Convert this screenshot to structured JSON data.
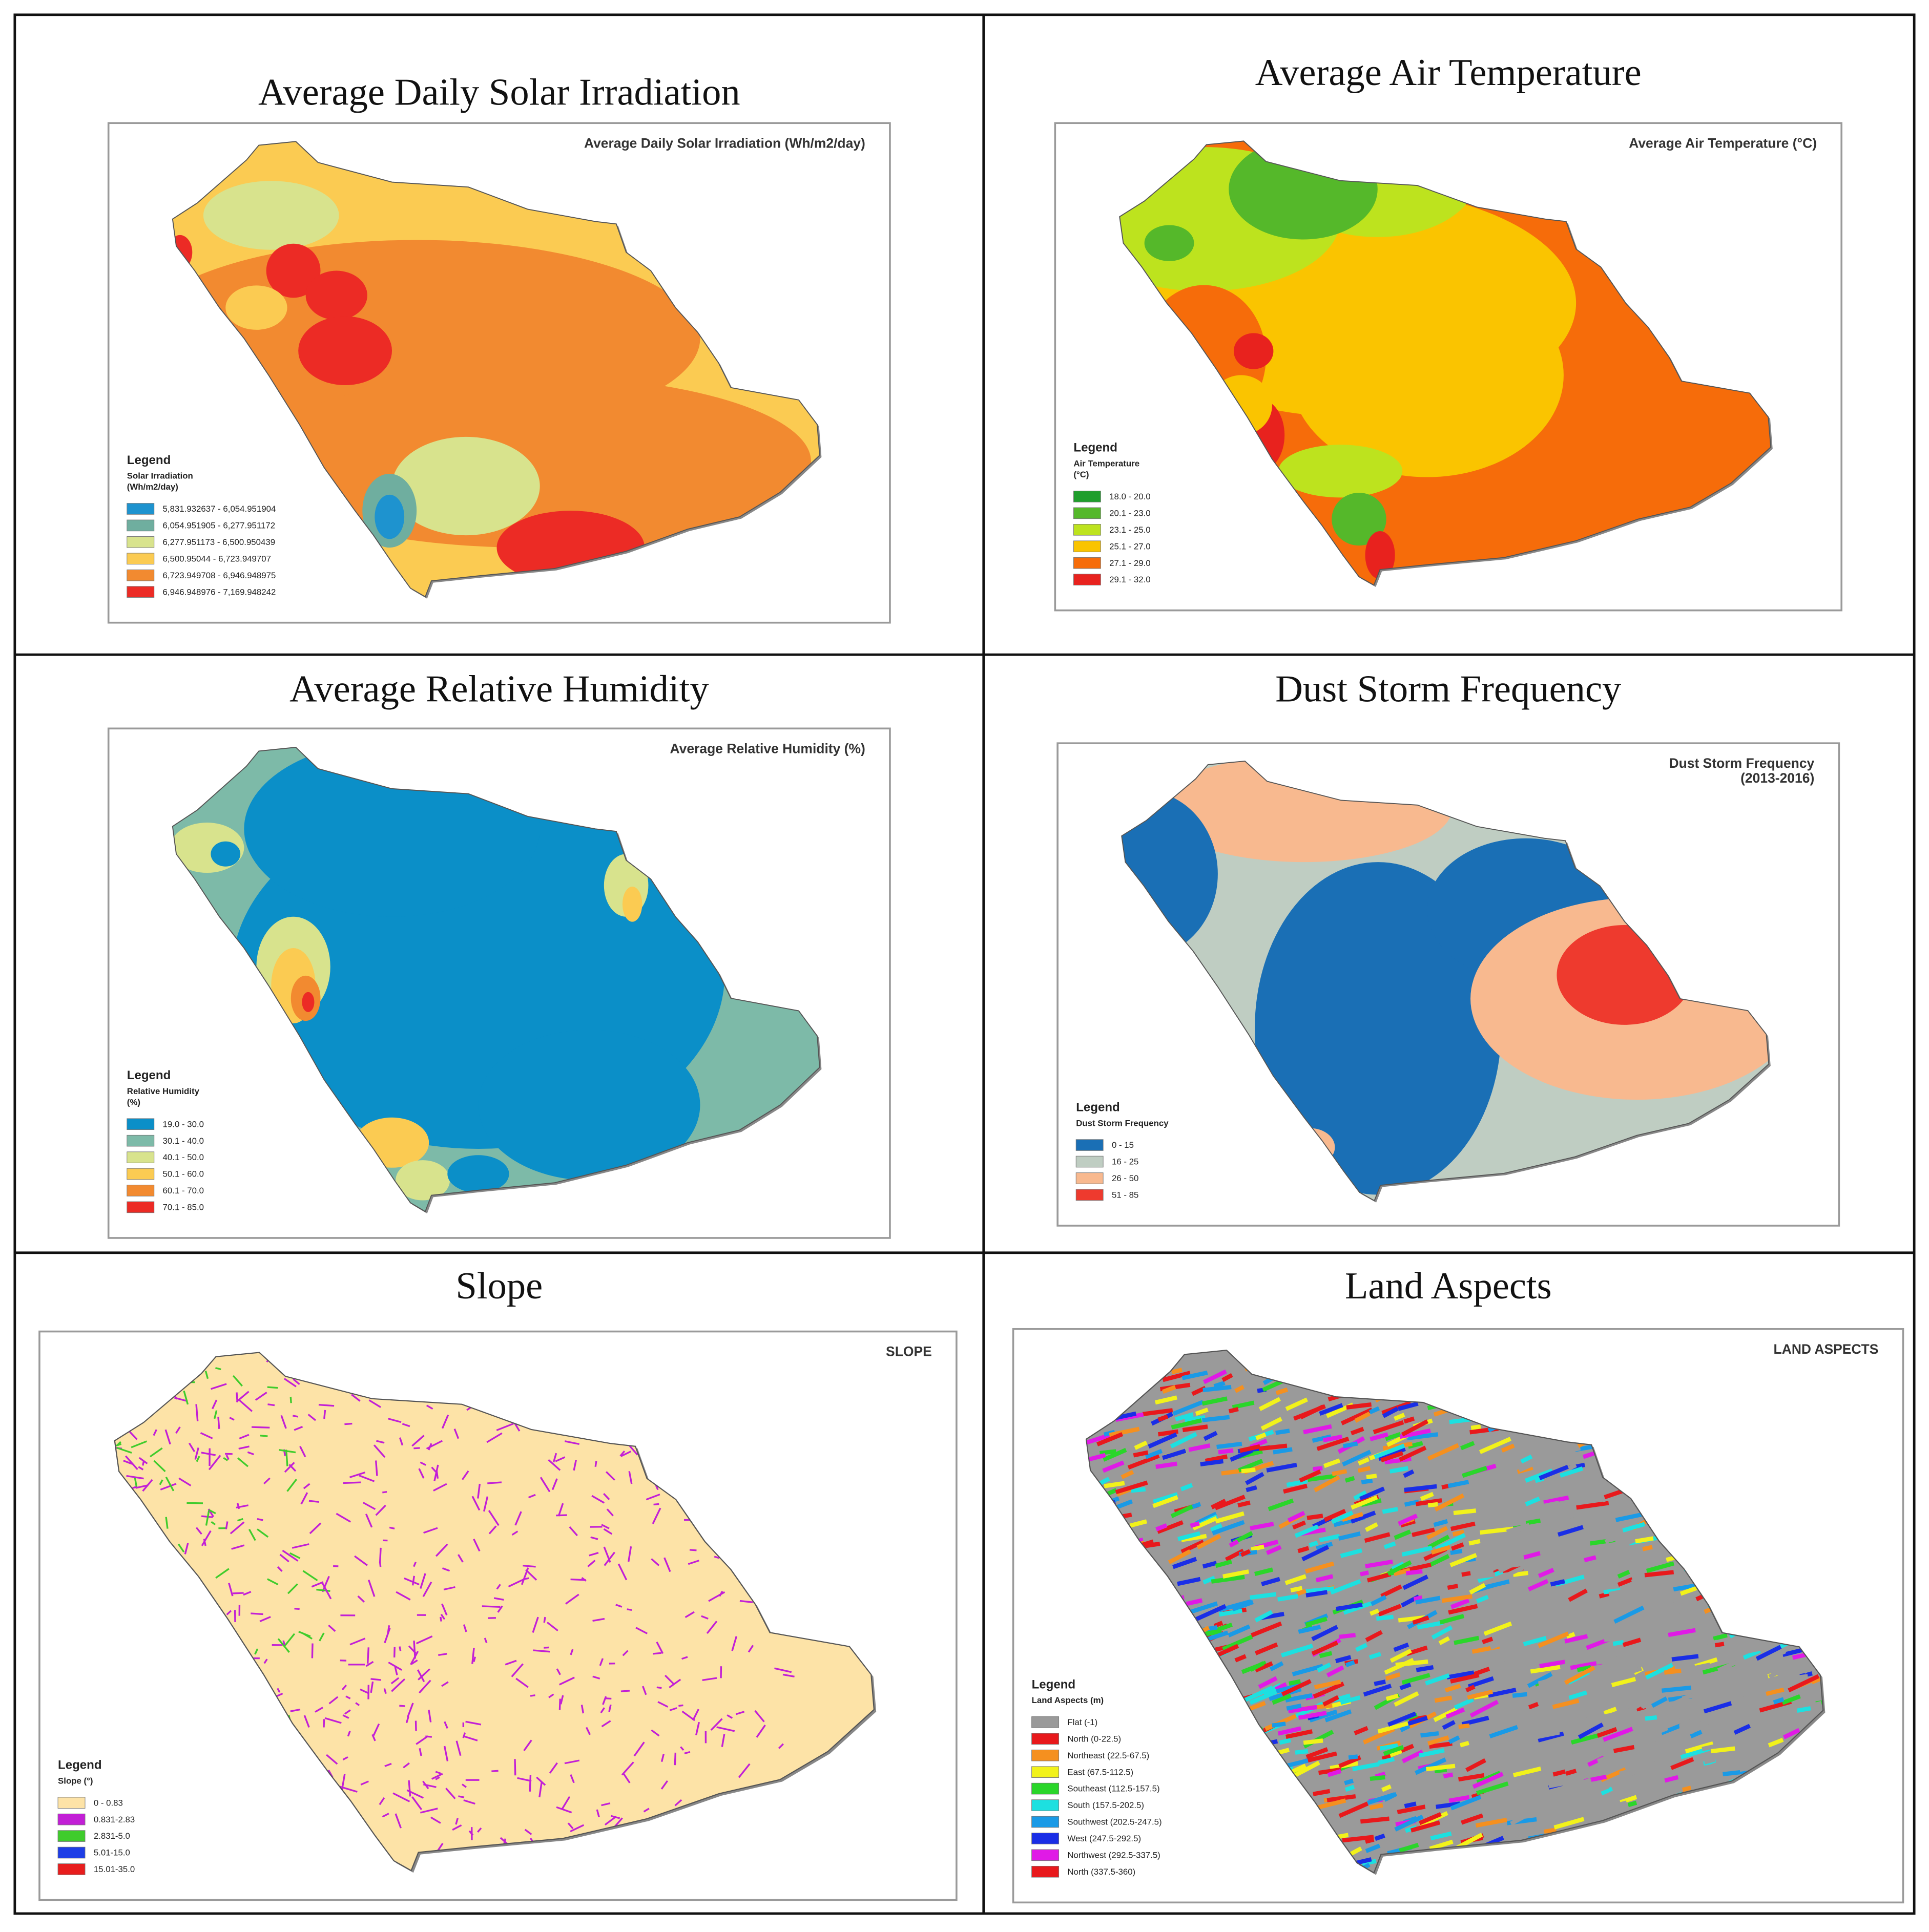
{
  "panels": [
    {
      "title": "Average Daily Solar Irradiation",
      "map_title": [
        "Average Daily Solar Irradiation (Wh/m2/day)"
      ],
      "legend": {
        "heading": "Legend",
        "title": [
          "Solar Irradiation",
          "(Wh/m2/day)"
        ],
        "items": [
          {
            "label": "5,831.932637 - 6,054.951904",
            "color": "#1e93cf"
          },
          {
            "label": "6,054.951905 - 6,277.951172",
            "color": "#6fae9f"
          },
          {
            "label": "6,277.951173 - 6,500.950439",
            "color": "#d8e38d"
          },
          {
            "label": "6,500.95044 - 6,723.949707",
            "color": "#fbcb52"
          },
          {
            "label": "6,723.949708 - 6,946.948975",
            "color": "#f28a30"
          },
          {
            "label": "6,946.948976 - 7,169.948242",
            "color": "#ec2b25"
          }
        ]
      }
    },
    {
      "title": "Average Air Temperature",
      "map_title": [
        "Average Air Temperature (°C)"
      ],
      "legend": {
        "heading": "Legend",
        "title": [
          "Air Temperature",
          "(°C)"
        ],
        "items": [
          {
            "label": "18.0 - 20.0",
            "color": "#1f9e2c"
          },
          {
            "label": "20.1 - 23.0",
            "color": "#55b82a"
          },
          {
            "label": "23.1 - 25.0",
            "color": "#bde31e"
          },
          {
            "label": "25.1 - 27.0",
            "color": "#fac400"
          },
          {
            "label": "27.1 - 29.0",
            "color": "#f66c0a"
          },
          {
            "label": "29.1 - 32.0",
            "color": "#e8221e"
          }
        ]
      }
    },
    {
      "title": "Average Relative Humidity",
      "map_title": [
        "Average Relative Humidity (%)"
      ],
      "legend": {
        "heading": "Legend",
        "title": [
          "Relative Humidity",
          "(%)"
        ],
        "items": [
          {
            "label": "19.0 - 30.0",
            "color": "#0b8fc8"
          },
          {
            "label": "30.1 - 40.0",
            "color": "#7dbaa8"
          },
          {
            "label": "40.1 - 50.0",
            "color": "#d8e38d"
          },
          {
            "label": "50.1 - 60.0",
            "color": "#fbcb52"
          },
          {
            "label": "60.1 - 70.0",
            "color": "#f28a30"
          },
          {
            "label": "70.1 - 85.0",
            "color": "#ec2b25"
          }
        ]
      }
    },
    {
      "title": "Dust Storm Frequency",
      "map_title": [
        "Dust Storm Frequency",
        "(2013-2016)"
      ],
      "legend": {
        "heading": "Legend",
        "title": [
          "Dust Storm Frequency"
        ],
        "items": [
          {
            "label": "0 - 15",
            "color": "#1a6fb5"
          },
          {
            "label": "16 - 25",
            "color": "#bfcdc2"
          },
          {
            "label": "26 - 50",
            "color": "#f8b98f"
          },
          {
            "label": "51 - 85",
            "color": "#ee3a2e"
          }
        ]
      }
    },
    {
      "title": "Slope",
      "map_title": [
        "SLOPE"
      ],
      "legend": {
        "heading": "Legend",
        "title": [
          "Slope (°)"
        ],
        "items": [
          {
            "label": "0 - 0.83",
            "color": "#fde3a7"
          },
          {
            "label": "0.831-2.83",
            "color": "#c21fd6"
          },
          {
            "label": "2.831-5.0",
            "color": "#3fcc2c"
          },
          {
            "label": "5.01-15.0",
            "color": "#1e3ee6"
          },
          {
            "label": "15.01-35.0",
            "color": "#e81d1d"
          }
        ]
      }
    },
    {
      "title": "Land Aspects",
      "map_title": [
        "LAND ASPECTS"
      ],
      "legend": {
        "heading": "Legend",
        "title": [
          "Land Aspects (m)"
        ],
        "items": [
          {
            "label": "Flat (-1)",
            "color": "#9a9a9a"
          },
          {
            "label": "North (0-22.5)",
            "color": "#e8191c"
          },
          {
            "label": "Northeast (22.5-67.5)",
            "color": "#f5901f"
          },
          {
            "label": "East (67.5-112.5)",
            "color": "#f2f21a"
          },
          {
            "label": "Southeast (112.5-157.5)",
            "color": "#2ad62a"
          },
          {
            "label": "South (157.5-202.5)",
            "color": "#1de0e0"
          },
          {
            "label": "Southwest (202.5-247.5)",
            "color": "#1a9ae6"
          },
          {
            "label": "West (247.5-292.5)",
            "color": "#1a2ee6"
          },
          {
            "label": "Northwest (292.5-337.5)",
            "color": "#e01ae6"
          },
          {
            "label": "North (337.5-360)",
            "color": "#e8191c"
          }
        ]
      }
    }
  ]
}
